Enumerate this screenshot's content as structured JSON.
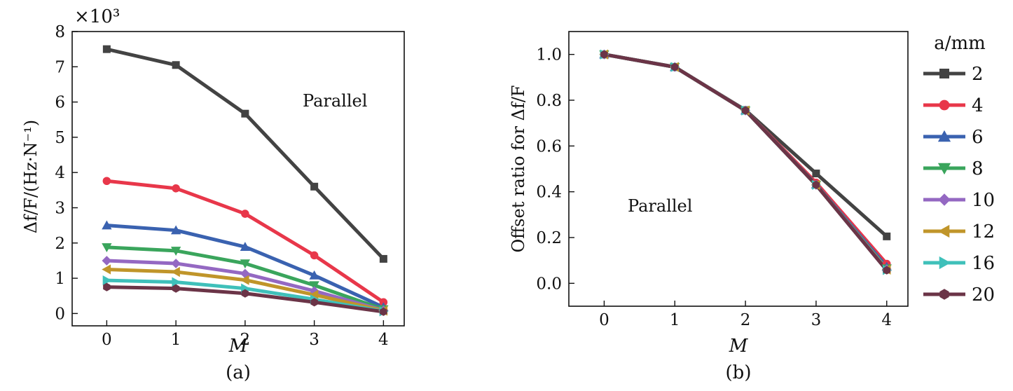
{
  "legend": {
    "title": "a/mm",
    "placement": "right",
    "markers": [
      "square",
      "circle",
      "triangle-up",
      "triangle-down",
      "diamond",
      "triangle-left",
      "triangle-right",
      "hexagon"
    ]
  },
  "chart_data": [
    {
      "type": "line",
      "panel_label": "(a)",
      "annotation": "Parallel",
      "xlabel": "M",
      "ylabel": "Δf/F/(Hz·N⁻¹)",
      "y_multiplier": "×10³",
      "x": [
        0,
        1,
        2,
        3,
        4
      ],
      "xlim": [
        -0.5,
        4.3
      ],
      "ylim": [
        -0.35,
        8.0
      ],
      "xticks": [
        0,
        1,
        2,
        3,
        4
      ],
      "yticks": [
        0,
        1,
        2,
        3,
        4,
        5,
        6,
        7,
        8
      ],
      "series": [
        {
          "name": "2",
          "color": "#434343",
          "values": [
            7.5,
            7.05,
            5.67,
            3.6,
            1.55
          ]
        },
        {
          "name": "4",
          "color": "#e8374a",
          "values": [
            3.76,
            3.55,
            2.83,
            1.65,
            0.32
          ]
        },
        {
          "name": "6",
          "color": "#3a62b0",
          "values": [
            2.5,
            2.36,
            1.89,
            1.08,
            0.18
          ]
        },
        {
          "name": "8",
          "color": "#3aa55c",
          "values": [
            1.88,
            1.78,
            1.42,
            0.8,
            0.12
          ]
        },
        {
          "name": "10",
          "color": "#9468c2",
          "values": [
            1.5,
            1.42,
            1.13,
            0.64,
            0.09
          ]
        },
        {
          "name": "12",
          "color": "#c0952a",
          "values": [
            1.25,
            1.18,
            0.95,
            0.53,
            0.08
          ]
        },
        {
          "name": "16",
          "color": "#3fc0ba",
          "values": [
            0.94,
            0.89,
            0.71,
            0.4,
            0.06
          ]
        },
        {
          "name": "20",
          "color": "#6b3447",
          "values": [
            0.75,
            0.71,
            0.57,
            0.32,
            0.05
          ]
        }
      ]
    },
    {
      "type": "line",
      "panel_label": "(b)",
      "annotation": "Parallel",
      "xlabel": "M",
      "ylabel": "Offset ratio for Δf/F",
      "x": [
        0,
        1,
        2,
        3,
        4
      ],
      "xlim": [
        -0.5,
        4.3
      ],
      "ylim": [
        -0.1,
        1.1
      ],
      "xticks": [
        0,
        1,
        2,
        3,
        4
      ],
      "yticks": [
        "0.0",
        "0.2",
        "0.4",
        "0.6",
        "0.8",
        "1.0"
      ],
      "series": [
        {
          "name": "2",
          "color": "#434343",
          "values": [
            1.0,
            0.945,
            0.757,
            0.48,
            0.205
          ]
        },
        {
          "name": "4",
          "color": "#e8374a",
          "values": [
            1.0,
            0.945,
            0.755,
            0.44,
            0.085
          ]
        },
        {
          "name": "6",
          "color": "#3a62b0",
          "values": [
            1.0,
            0.945,
            0.755,
            0.432,
            0.072
          ]
        },
        {
          "name": "8",
          "color": "#3aa55c",
          "values": [
            1.0,
            0.945,
            0.755,
            0.43,
            0.065
          ]
        },
        {
          "name": "10",
          "color": "#9468c2",
          "values": [
            1.0,
            0.945,
            0.755,
            0.43,
            0.062
          ]
        },
        {
          "name": "12",
          "color": "#c0952a",
          "values": [
            1.0,
            0.945,
            0.755,
            0.43,
            0.06
          ]
        },
        {
          "name": "16",
          "color": "#3fc0ba",
          "values": [
            1.0,
            0.945,
            0.755,
            0.43,
            0.058
          ]
        },
        {
          "name": "20",
          "color": "#6b3447",
          "values": [
            1.0,
            0.945,
            0.755,
            0.43,
            0.057
          ]
        }
      ]
    }
  ]
}
